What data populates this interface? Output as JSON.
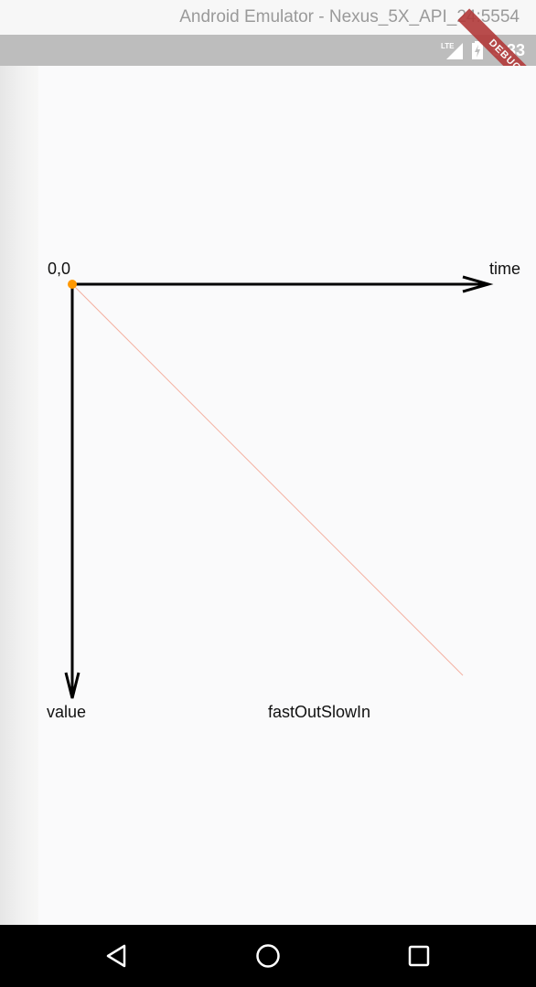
{
  "window": {
    "title": "Android Emulator - Nexus_5X_API_24:5554"
  },
  "status_bar": {
    "network": "LTE",
    "time": "5:33",
    "debug_banner": "DEBUG"
  },
  "chart": {
    "origin_label": "0,0",
    "x_axis_label": "time",
    "y_axis_label": "value",
    "curve_name": "fastOutSlowIn",
    "colors": {
      "axes": "#000000",
      "curve": "#f4b0a0",
      "marker": "#ff9800"
    }
  },
  "chart_data": {
    "type": "line",
    "xlabel": "time",
    "ylabel": "value",
    "xlim": [
      0,
      1
    ],
    "ylim": [
      0,
      1
    ],
    "series": [
      {
        "name": "fastOutSlowIn",
        "x": [
          0,
          1
        ],
        "y": [
          0,
          1
        ]
      }
    ],
    "marker_point": {
      "x": 0,
      "y": 0
    },
    "grid": false
  },
  "nav_bar": {
    "icons": [
      "back-icon",
      "home-icon",
      "recents-icon"
    ]
  }
}
